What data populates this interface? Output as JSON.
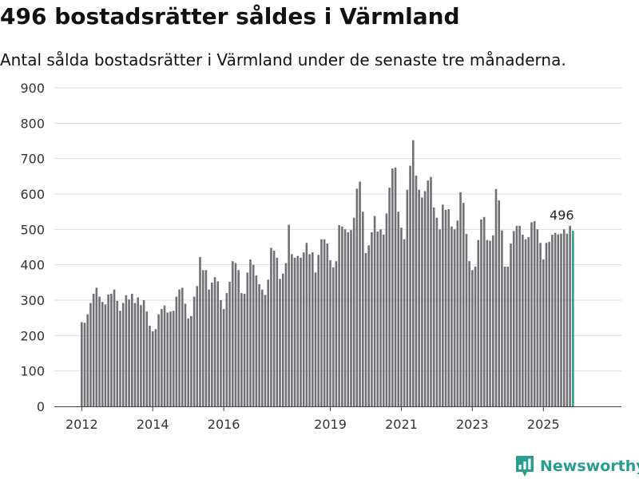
{
  "header": {
    "title": "496 bostadsrätter såldes i Värmland",
    "subtitle": "Antal sålda bostadsrätter i Värmland under de senaste tre månaderna."
  },
  "brand": {
    "name": "Newsworthy",
    "icon": "newsworthy-logo-icon",
    "color": "#2a9d8f"
  },
  "chart_data": {
    "type": "bar",
    "title": "496 bostadsrätter såldes i Värmland",
    "subtitle": "Antal sålda bostadsrätter i Värmland under de senaste tre månaderna.",
    "xlabel": "",
    "ylabel": "",
    "ylim": [
      0,
      900
    ],
    "yticks": [
      0,
      100,
      200,
      300,
      400,
      500,
      600,
      700,
      800,
      900
    ],
    "xticks": [
      {
        "label": "2012",
        "year": 2012
      },
      {
        "label": "2014",
        "year": 2014
      },
      {
        "label": "2016",
        "year": 2016
      },
      {
        "label": "2019",
        "year": 2019
      },
      {
        "label": "2021",
        "year": 2021
      },
      {
        "label": "2023",
        "year": 2023
      },
      {
        "label": "2025",
        "year": 2025
      }
    ],
    "start": {
      "year": 2012,
      "month": 1
    },
    "frequency": "monthly",
    "grid": true,
    "bar_color": "#707075",
    "highlight_color": "#2a9d8f",
    "highlight_label": "496",
    "values": [
      238,
      236,
      260,
      292,
      318,
      335,
      310,
      295,
      288,
      316,
      318,
      330,
      298,
      270,
      292,
      314,
      302,
      318,
      292,
      308,
      286,
      300,
      268,
      228,
      212,
      218,
      260,
      275,
      285,
      265,
      268,
      270,
      310,
      330,
      335,
      290,
      248,
      255,
      310,
      340,
      422,
      385,
      385,
      330,
      350,
      365,
      353,
      300,
      275,
      320,
      352,
      410,
      405,
      385,
      320,
      318,
      378,
      415,
      400,
      370,
      345,
      330,
      315,
      358,
      448,
      440,
      420,
      360,
      375,
      405,
      513,
      430,
      420,
      425,
      420,
      435,
      462,
      430,
      435,
      378,
      428,
      472,
      472,
      460,
      413,
      393,
      410,
      512,
      508,
      500,
      492,
      498,
      533,
      615,
      635,
      550,
      433,
      455,
      492,
      538,
      494,
      500,
      485,
      545,
      618,
      672,
      675,
      550,
      505,
      472,
      612,
      680,
      752,
      652,
      612,
      590,
      608,
      638,
      648,
      562,
      533,
      500,
      570,
      555,
      557,
      508,
      500,
      525,
      605,
      575,
      487,
      410,
      385,
      395,
      470,
      528,
      535,
      470,
      468,
      483,
      614,
      582,
      497,
      395,
      395,
      460,
      495,
      510,
      510,
      485,
      472,
      478,
      520,
      523,
      500,
      462,
      415,
      462,
      465,
      485,
      490,
      486,
      488,
      500,
      488,
      510,
      496
    ]
  }
}
